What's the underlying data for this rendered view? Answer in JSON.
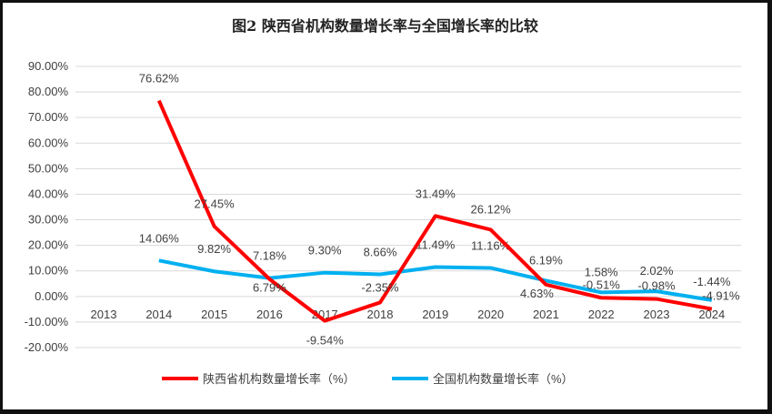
{
  "chart_data": {
    "type": "line",
    "title": "图2  陕西省机构数量增长率与全国增长率的比较",
    "categories": [
      "2013",
      "2014",
      "2015",
      "2016",
      "2017",
      "2018",
      "2019",
      "2020",
      "2021",
      "2022",
      "2023",
      "2024"
    ],
    "ylim": [
      -20,
      90
    ],
    "yticks": [
      "90.00%",
      "80.00%",
      "70.00%",
      "60.00%",
      "50.00%",
      "40.00%",
      "30.00%",
      "20.00%",
      "10.00%",
      "0.00%",
      "-10.00%",
      "-20.00%"
    ],
    "grid": true,
    "legend": "bottom",
    "series": [
      {
        "name": "陕西省机构数量增长率（%）",
        "color": "#ff0000",
        "values": [
          null,
          76.62,
          27.45,
          6.79,
          -9.54,
          -2.35,
          31.49,
          26.12,
          4.63,
          -0.51,
          -0.98,
          -4.91
        ],
        "labels": [
          "",
          "76.62%",
          "27.45%",
          "6.79%",
          "-9.54%",
          "-2.35%",
          "31.49%",
          "26.12%",
          "4.63%",
          "-0.51%",
          "-0.98%",
          "-4.91%"
        ]
      },
      {
        "name": "全国机构数量增长率（%）",
        "color": "#00b0f0",
        "values": [
          null,
          14.06,
          9.82,
          7.18,
          9.3,
          8.66,
          11.49,
          11.16,
          6.19,
          1.58,
          2.02,
          -1.44
        ],
        "labels": [
          "",
          "14.06%",
          "9.82%",
          "7.18%",
          "9.30%",
          "8.66%",
          "11.49%",
          "11.16%",
          "6.19%",
          "1.58%",
          "2.02%",
          "-1.44%"
        ]
      }
    ]
  }
}
